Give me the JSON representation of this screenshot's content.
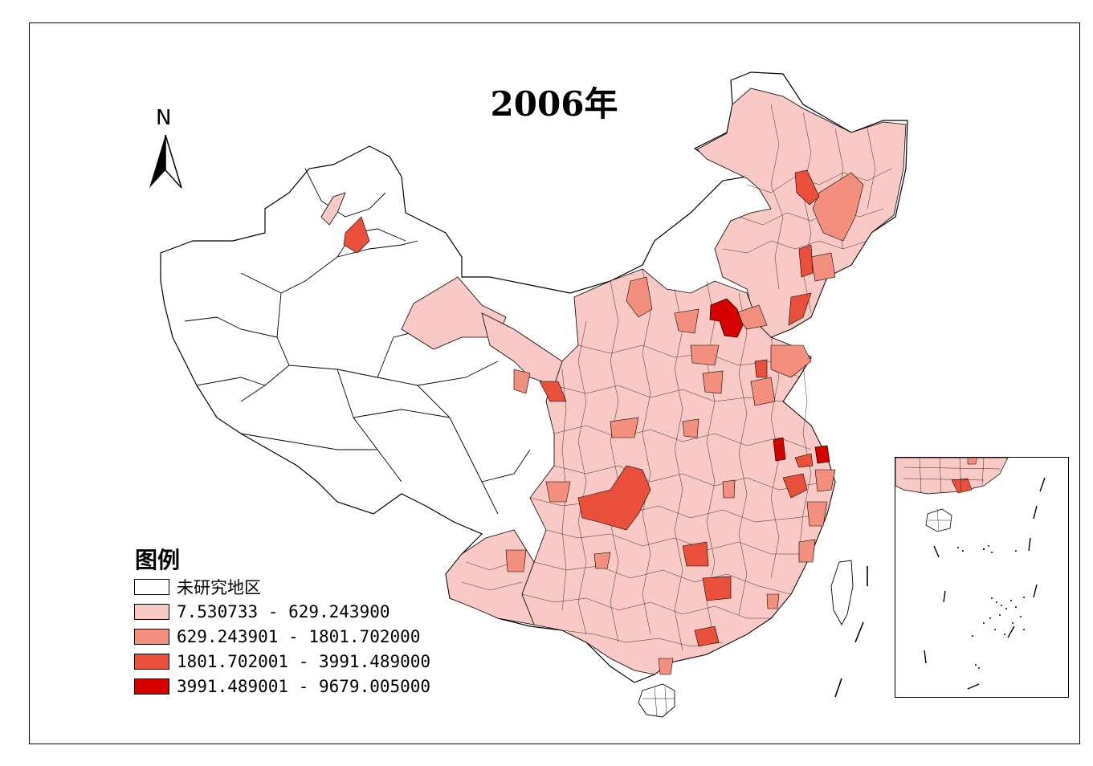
{
  "title": "2006年",
  "north_arrow": {
    "label": "N"
  },
  "legend": {
    "title": "图例",
    "items": [
      {
        "label": "未研究地区",
        "color": "#ffffff"
      },
      {
        "label": "7.530733 - 629.243900",
        "color": "#f9c9c6"
      },
      {
        "label": "629.243901 - 1801.702000",
        "color": "#f38f7f"
      },
      {
        "label": "1801.702001 - 3991.489000",
        "color": "#e8503c"
      },
      {
        "label": "3991.489001 - 9679.005000",
        "color": "#d70000"
      }
    ]
  },
  "inset": {
    "icon": "south-china-sea-inset"
  }
}
